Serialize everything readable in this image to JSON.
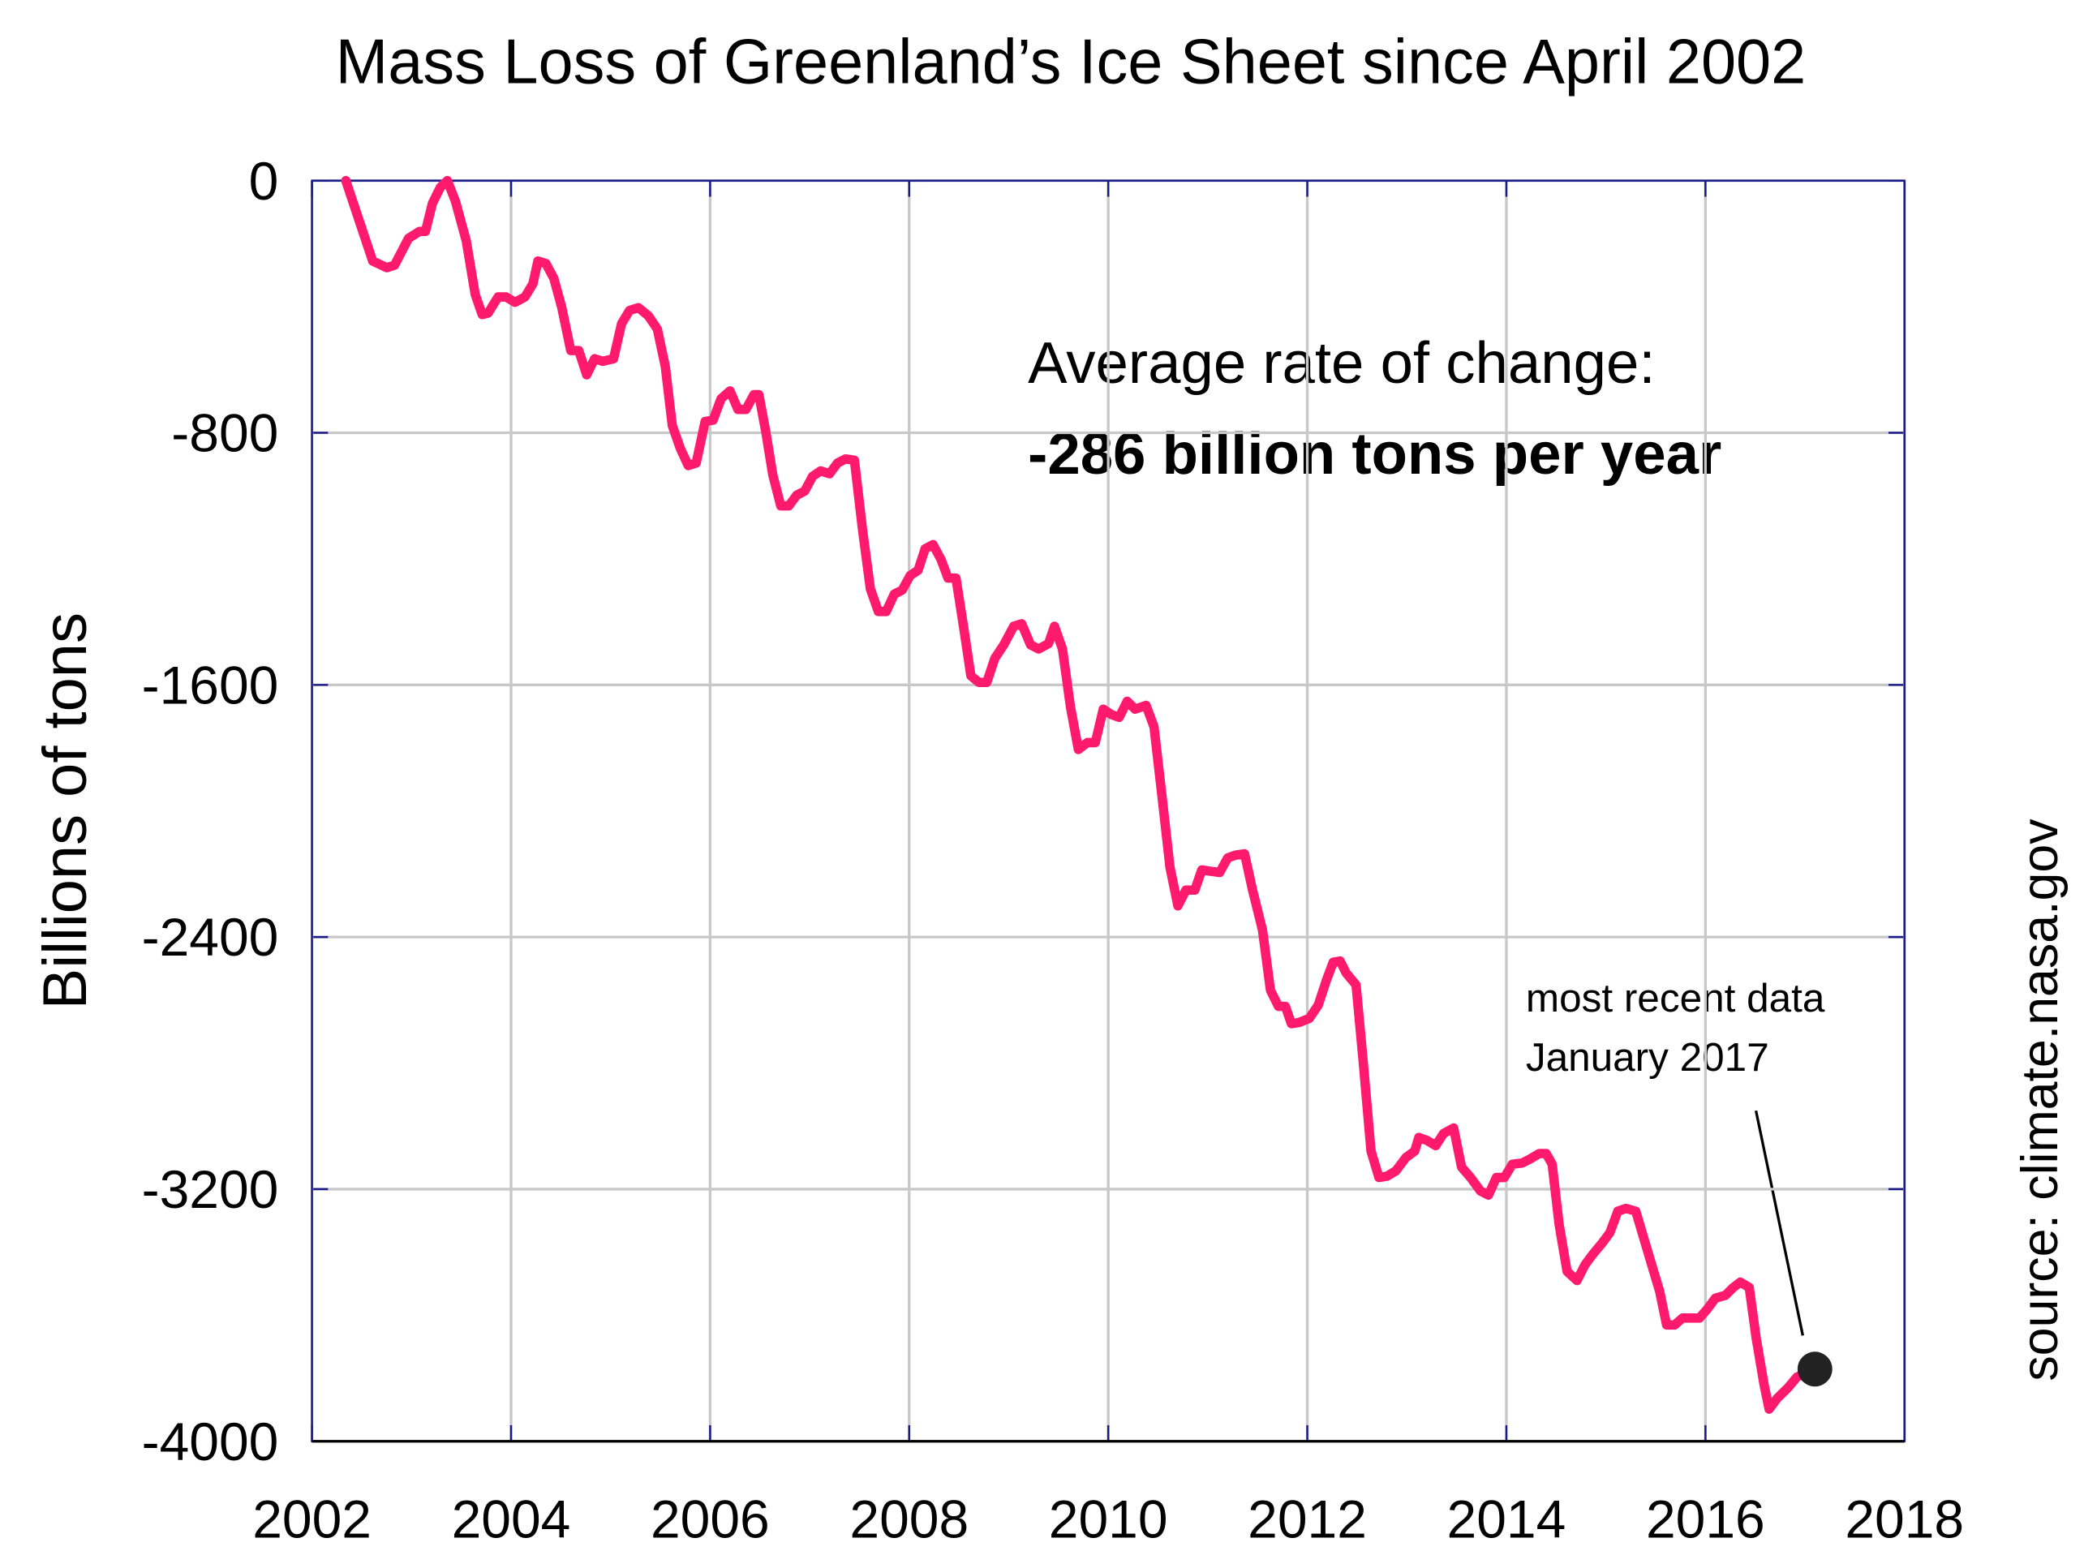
{
  "chart_data": {
    "type": "line",
    "title": "Mass Loss of Greenland’s Ice Sheet since April 2002",
    "y_label": "Billions of tons",
    "rate_label": "Average rate of change:",
    "rate_value": "-286 billion tons per year",
    "latest_note": [
      "most recent data",
      "January 2017"
    ],
    "source": "source: climate.nasa.gov",
    "color": "#ff1a6e",
    "marker_color": "#222222",
    "grid": true,
    "xlim": [
      2002,
      2018
    ],
    "xticks": [
      2002,
      2004,
      2006,
      2008,
      2010,
      2012,
      2014,
      2016,
      2018
    ],
    "ylim": [
      -4000,
      0
    ],
    "yticks": [
      0,
      -800,
      -1600,
      -2400,
      -3200,
      -4000
    ],
    "x": [
      2002.34,
      2002.61,
      2002.75,
      2002.83,
      2002.97,
      2003.08,
      2003.14,
      2003.21,
      2003.29,
      2003.36,
      2003.44,
      2003.55,
      2003.64,
      2003.71,
      2003.77,
      2003.87,
      2003.95,
      2004.04,
      2004.14,
      2004.22,
      2004.27,
      2004.35,
      2004.43,
      2004.51,
      2004.6,
      2004.68,
      2004.76,
      2004.84,
      2004.92,
      2005.03,
      2005.11,
      2005.19,
      2005.28,
      2005.38,
      2005.47,
      2005.55,
      2005.62,
      2005.7,
      2005.78,
      2005.86,
      2005.95,
      2006.03,
      2006.11,
      2006.2,
      2006.28,
      2006.36,
      2006.44,
      2006.49,
      2006.56,
      2006.63,
      2006.71,
      2006.79,
      2006.87,
      2006.95,
      2007.03,
      2007.11,
      2007.2,
      2007.28,
      2007.36,
      2007.45,
      2007.53,
      2007.61,
      2007.69,
      2007.77,
      2007.85,
      2007.93,
      2008.01,
      2008.09,
      2008.16,
      2008.24,
      2008.32,
      2008.39,
      2008.47,
      2008.55,
      2008.62,
      2008.7,
      2008.78,
      2008.86,
      2008.95,
      2009.05,
      2009.13,
      2009.22,
      2009.3,
      2009.4,
      2009.46,
      2009.54,
      2009.62,
      2009.7,
      2009.79,
      2009.87,
      2009.95,
      2010.03,
      2010.11,
      2010.19,
      2010.27,
      2010.38,
      2010.46,
      2010.54,
      2010.62,
      2010.7,
      2010.78,
      2010.87,
      2010.94,
      2011.02,
      2011.12,
      2011.2,
      2011.28,
      2011.37,
      2011.45,
      2011.55,
      2011.63,
      2011.71,
      2011.78,
      2011.84,
      2011.92,
      2012.02,
      2012.11,
      2012.19,
      2012.26,
      2012.33,
      2012.39,
      2012.49,
      2012.56,
      2012.64,
      2012.72,
      2012.8,
      2012.89,
      2012.99,
      2013.08,
      2013.12,
      2013.2,
      2013.29,
      2013.37,
      2013.47,
      2013.55,
      2013.64,
      2013.74,
      2013.82,
      2013.9,
      2013.98,
      2014.06,
      2014.16,
      2014.24,
      2014.33,
      2014.4,
      2014.46,
      2014.53,
      2014.61,
      2014.71,
      2014.79,
      2014.87,
      2014.96,
      2015.04,
      2015.12,
      2015.2,
      2015.3,
      2015.38,
      2015.46,
      2015.54,
      2015.61,
      2015.69,
      2015.77,
      2015.85,
      2015.94,
      2016.02,
      2016.1,
      2016.2,
      2016.28,
      2016.35,
      2016.44,
      2016.51,
      2016.59,
      2016.64,
      2016.72,
      2016.83,
      2016.92,
      2017.1
    ],
    "values": [
      0,
      -255,
      -276,
      -268,
      -183,
      -161,
      -161,
      -72,
      -21,
      0,
      -64,
      -191,
      -361,
      -425,
      -420,
      -369,
      -369,
      -386,
      -369,
      -327,
      -255,
      -263,
      -310,
      -403,
      -539,
      -539,
      -616,
      -565,
      -573,
      -565,
      -454,
      -412,
      -403,
      -429,
      -471,
      -590,
      -777,
      -849,
      -904,
      -896,
      -764,
      -760,
      -692,
      -667,
      -726,
      -726,
      -679,
      -679,
      -798,
      -934,
      -1032,
      -1032,
      -998,
      -985,
      -938,
      -921,
      -930,
      -896,
      -883,
      -887,
      -1104,
      -1295,
      -1367,
      -1367,
      -1312,
      -1299,
      -1253,
      -1236,
      -1168,
      -1155,
      -1202,
      -1261,
      -1261,
      -1423,
      -1571,
      -1592,
      -1592,
      -1516,
      -1473,
      -1414,
      -1406,
      -1473,
      -1486,
      -1469,
      -1414,
      -1486,
      -1669,
      -1805,
      -1783,
      -1783,
      -1677,
      -1694,
      -1703,
      -1652,
      -1677,
      -1665,
      -1733,
      -1953,
      -2178,
      -2301,
      -2251,
      -2251,
      -2187,
      -2191,
      -2195,
      -2149,
      -2140,
      -2136,
      -2251,
      -2378,
      -2569,
      -2620,
      -2620,
      -2675,
      -2671,
      -2658,
      -2616,
      -2539,
      -2480,
      -2476,
      -2514,
      -2552,
      -2790,
      -3079,
      -3163,
      -3159,
      -3142,
      -3100,
      -3079,
      -3036,
      -3045,
      -3062,
      -3023,
      -3006,
      -3130,
      -3163,
      -3206,
      -3219,
      -3163,
      -3163,
      -3121,
      -3117,
      -3104,
      -3087,
      -3087,
      -3121,
      -3312,
      -3461,
      -3490,
      -3440,
      -3406,
      -3372,
      -3338,
      -3270,
      -3261,
      -3270,
      -3355,
      -3440,
      -3524,
      -3631,
      -3631,
      -3609,
      -3609,
      -3609,
      -3580,
      -3546,
      -3537,
      -3512,
      -3495,
      -3512,
      -3673,
      -3822,
      -3898,
      -3864,
      -3830,
      -3796,
      -3771
    ]
  }
}
